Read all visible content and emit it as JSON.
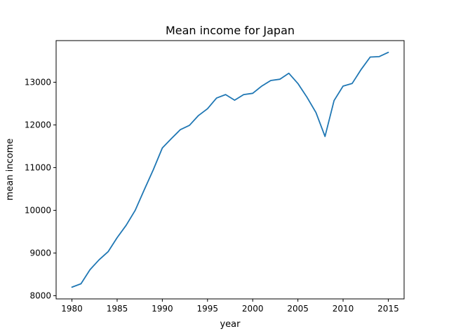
{
  "chart_data": {
    "type": "line",
    "title": "Mean income for Japan",
    "xlabel": "year",
    "ylabel": "mean income",
    "xlim": [
      1978.25,
      2016.75
    ],
    "ylim": [
      7925,
      13975
    ],
    "xticks": [
      1980,
      1985,
      1990,
      1995,
      2000,
      2005,
      2010,
      2015
    ],
    "yticks": [
      8000,
      9000,
      10000,
      11000,
      12000,
      13000
    ],
    "grid": false,
    "line_color": "#1f77b4",
    "series": [
      {
        "x": [
          1980,
          1981,
          1982,
          1983,
          1984,
          1985,
          1986,
          1987,
          1988,
          1989,
          1990,
          1991,
          1992,
          1993,
          1994,
          1995,
          1996,
          1997,
          1998,
          1999,
          2000,
          2001,
          2002,
          2003,
          2004,
          2005,
          2006,
          2007,
          2008,
          2009,
          2010,
          2011,
          2012,
          2013,
          2014,
          2015
        ],
        "values": [
          8200,
          8280,
          8610,
          8840,
          9030,
          9360,
          9650,
          10000,
          10480,
          10950,
          11460,
          11680,
          11890,
          11990,
          12220,
          12380,
          12630,
          12710,
          12580,
          12710,
          12740,
          12910,
          13040,
          13070,
          13210,
          12970,
          12650,
          12290,
          11730,
          12570,
          12910,
          12970,
          13300,
          13590,
          13600,
          13700
        ]
      }
    ]
  }
}
